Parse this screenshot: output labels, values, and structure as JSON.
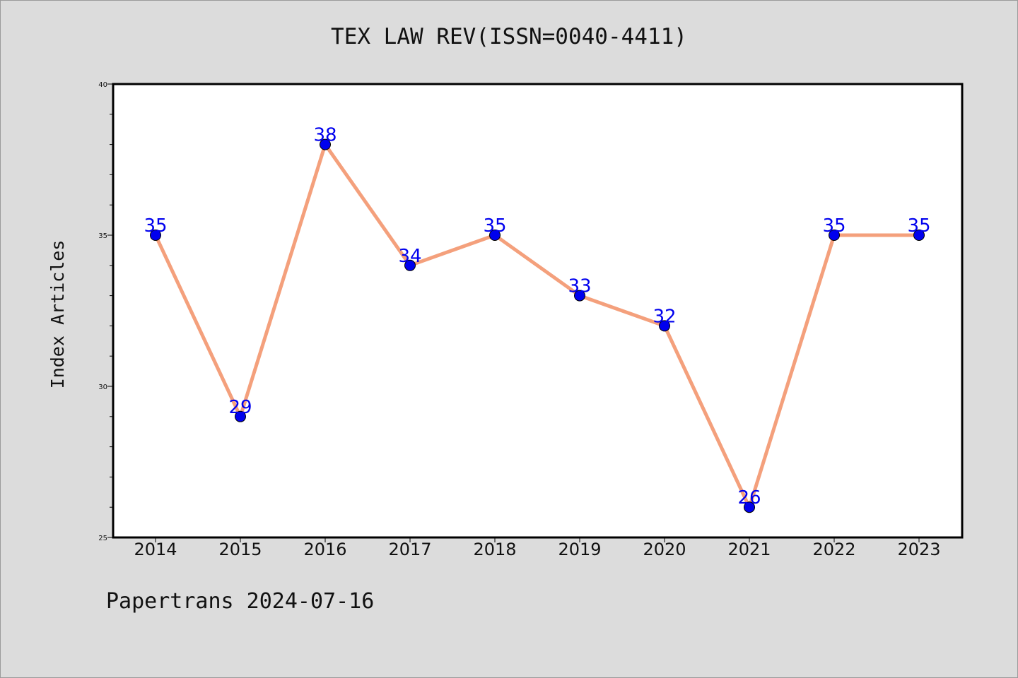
{
  "chart_data": {
    "type": "line",
    "title": "TEX LAW REV(ISSN=0040-4411)",
    "xlabel": "",
    "ylabel": "Index Articles",
    "categories": [
      "2014",
      "2015",
      "2016",
      "2017",
      "2018",
      "2019",
      "2020",
      "2021",
      "2022",
      "2023"
    ],
    "series": [
      {
        "values": [
          35,
          29,
          38,
          34,
          35,
          33,
          32,
          26,
          35,
          35
        ]
      }
    ],
    "data_labels": [
      "35",
      "29",
      "38",
      "34",
      "35",
      "33",
      "32",
      "26",
      "35",
      "35"
    ],
    "ylim": [
      25,
      40
    ],
    "y_ticks": [
      "25",
      "30",
      "35",
      "40"
    ],
    "grid": false,
    "line_color": "#f4a07c",
    "marker_color": "#0000ee",
    "label_color": "#0000ee"
  },
  "footer": {
    "note": "Papertrans 2024-07-16"
  }
}
